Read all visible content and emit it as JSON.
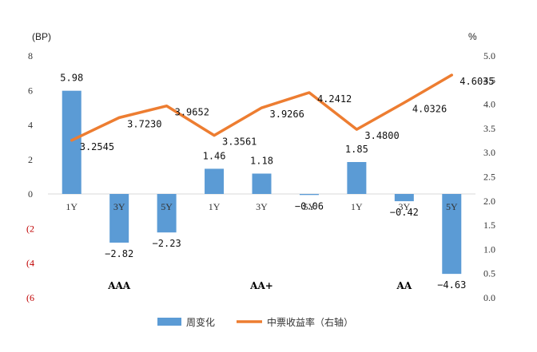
{
  "chart_data": {
    "type": "bar+line",
    "categories": [
      "1Y",
      "3Y",
      "5Y",
      "1Y",
      "3Y",
      "5Y",
      "1Y",
      "3Y",
      "5Y"
    ],
    "groups": [
      {
        "label": "AAA",
        "categories": [
          "1Y",
          "3Y",
          "5Y"
        ]
      },
      {
        "label": "AA+",
        "categories": [
          "1Y",
          "3Y",
          "5Y"
        ]
      },
      {
        "label": "AA",
        "categories": [
          "1Y",
          "3Y",
          "5Y"
        ]
      }
    ],
    "series": [
      {
        "name": "周变化",
        "type": "bar",
        "axis": "left",
        "color": "#5b9bd5",
        "values": [
          5.98,
          -2.82,
          -2.23,
          1.46,
          1.18,
          -0.06,
          1.85,
          -0.42,
          -4.63
        ],
        "labels": [
          "5.98",
          "−2.82",
          "−2.23",
          "1.46",
          "1.18",
          "−0.06",
          "1.85",
          "−0.42",
          "−4.63"
        ]
      },
      {
        "name": "中票收益率（右轴）",
        "type": "line",
        "axis": "right",
        "color": "#ed7d31",
        "values": [
          3.2545,
          3.723,
          3.9652,
          3.3561,
          3.9266,
          4.2412,
          3.48,
          4.0326,
          4.6035
        ],
        "labels": [
          "3.2545",
          "3.7230",
          "3.9652",
          "3.3561",
          "3.9266",
          "4.2412",
          "3.4800",
          "4.0326",
          "4.6035"
        ]
      }
    ],
    "left_axis": {
      "unit": "(BP)",
      "range": [
        -6,
        8
      ],
      "ticks": [
        8,
        6,
        4,
        2,
        0,
        -2,
        -4,
        -6
      ],
      "tick_labels": [
        "8",
        "6",
        "4",
        "2",
        "0",
        "(2",
        "(4",
        "(6"
      ],
      "negative_color": "#c00000"
    },
    "right_axis": {
      "unit": "%",
      "range": [
        0,
        5
      ],
      "ticks": [
        5,
        4.5,
        4,
        3.5,
        3,
        2.5,
        2,
        1.5,
        1,
        0.5,
        0
      ],
      "tick_labels": [
        "5.0",
        "4.5",
        "4.0",
        "3.5",
        "3.0",
        "2.5",
        "2.0",
        "1.5",
        "1.0",
        "0.5",
        "0.0"
      ]
    },
    "legend": {
      "position": "bottom"
    },
    "grid": false
  }
}
